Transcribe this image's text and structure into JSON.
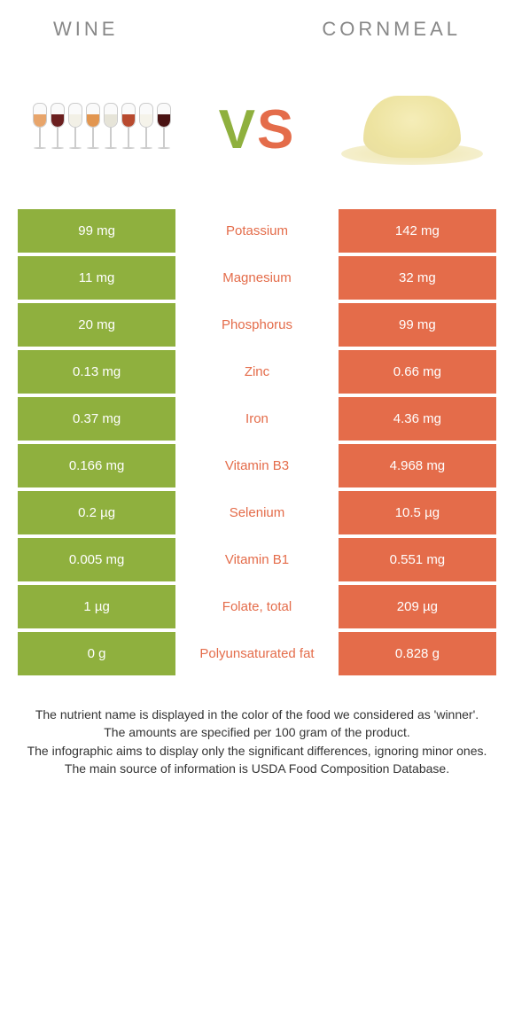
{
  "header": {
    "left_label": "Wine",
    "right_label": "Cornmeal"
  },
  "vs": {
    "v": "V",
    "s": "S"
  },
  "colors": {
    "left_cell_bg": "#8fb03e",
    "right_cell_bg": "#e46c4a",
    "wine_fills": [
      "#e8a56b",
      "#6b1f1f",
      "#f2f0e6",
      "#e29650",
      "#e6e4d8",
      "#b84a2f",
      "#f5f3ea",
      "#4a1313"
    ]
  },
  "table": {
    "rows": [
      {
        "left": "99 mg",
        "nutrient": "Potassium",
        "right": "142 mg",
        "winner_color": "#e46c4a"
      },
      {
        "left": "11 mg",
        "nutrient": "Magnesium",
        "right": "32 mg",
        "winner_color": "#e46c4a"
      },
      {
        "left": "20 mg",
        "nutrient": "Phosphorus",
        "right": "99 mg",
        "winner_color": "#e46c4a"
      },
      {
        "left": "0.13 mg",
        "nutrient": "Zinc",
        "right": "0.66 mg",
        "winner_color": "#e46c4a"
      },
      {
        "left": "0.37 mg",
        "nutrient": "Iron",
        "right": "4.36 mg",
        "winner_color": "#e46c4a"
      },
      {
        "left": "0.166 mg",
        "nutrient": "Vitamin B3",
        "right": "4.968 mg",
        "winner_color": "#e46c4a"
      },
      {
        "left": "0.2 µg",
        "nutrient": "Selenium",
        "right": "10.5 µg",
        "winner_color": "#e46c4a"
      },
      {
        "left": "0.005 mg",
        "nutrient": "Vitamin B1",
        "right": "0.551 mg",
        "winner_color": "#e46c4a"
      },
      {
        "left": "1 µg",
        "nutrient": "Folate, total",
        "right": "209 µg",
        "winner_color": "#e46c4a"
      },
      {
        "left": "0 g",
        "nutrient": "Polyunsaturated fat",
        "right": "0.828 g",
        "winner_color": "#e46c4a"
      }
    ]
  },
  "notes": {
    "line1": "The nutrient name is displayed in the color of the food we considered as 'winner'.",
    "line2": "The amounts are specified per 100 gram of the product.",
    "line3": "The infographic aims to display only the significant differences, ignoring minor ones.",
    "line4": "The main source of information is USDA Food Composition Database."
  }
}
